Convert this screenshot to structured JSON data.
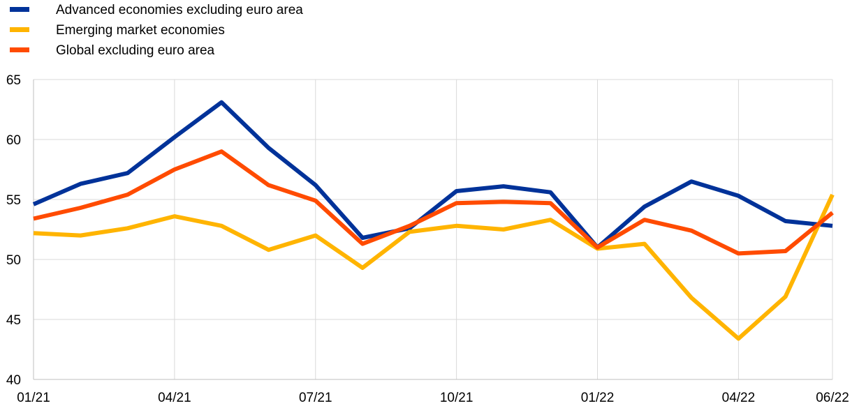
{
  "chart_data": {
    "type": "line",
    "title": "",
    "xlabel": "",
    "ylabel": "",
    "x": [
      "01/21",
      "02/21",
      "03/21",
      "04/21",
      "05/21",
      "06/21",
      "07/21",
      "08/21",
      "09/21",
      "10/21",
      "11/21",
      "12/21",
      "01/22",
      "02/22",
      "03/22",
      "04/22",
      "05/22",
      "06/22"
    ],
    "x_tick_labels": [
      "01/21",
      "04/21",
      "07/21",
      "10/21",
      "01/22",
      "04/22",
      "06/22"
    ],
    "y_ticks": [
      40,
      45,
      50,
      55,
      60,
      65
    ],
    "ylim": [
      40,
      65
    ],
    "grid": true,
    "legend_position": "top-left",
    "series": [
      {
        "name": "Advanced economies excluding euro area",
        "color": "#003299",
        "values": [
          54.6,
          56.3,
          57.2,
          60.2,
          63.1,
          59.3,
          56.2,
          51.8,
          52.6,
          55.7,
          56.1,
          55.6,
          51.0,
          54.4,
          56.5,
          55.3,
          53.2,
          52.8
        ]
      },
      {
        "name": "Emerging market economies",
        "color": "#FFB400",
        "values": [
          52.2,
          52.0,
          52.6,
          53.6,
          52.8,
          50.8,
          52.0,
          49.3,
          52.3,
          52.8,
          52.5,
          53.3,
          50.9,
          51.3,
          46.8,
          43.4,
          46.9,
          55.4
        ]
      },
      {
        "name": "Global excluding euro area",
        "color": "#FF4B00",
        "values": [
          53.4,
          54.3,
          55.4,
          57.5,
          59.0,
          56.2,
          54.9,
          51.3,
          52.8,
          54.7,
          54.8,
          54.7,
          51.0,
          53.3,
          52.4,
          50.5,
          50.7,
          53.9
        ]
      }
    ]
  }
}
